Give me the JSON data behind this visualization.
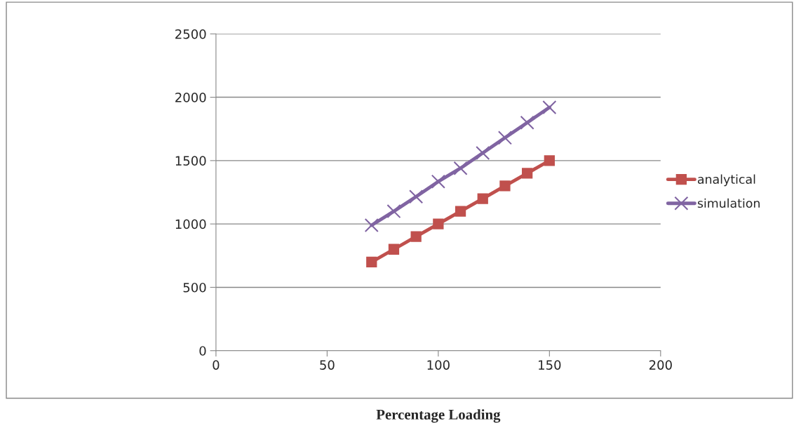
{
  "chart_data": {
    "type": "line",
    "xlabel": "Percentage Loading",
    "x": [
      70,
      80,
      90,
      100,
      110,
      120,
      130,
      140,
      150
    ],
    "series": [
      {
        "name": "analytical",
        "color": "#c0504d",
        "marker": "square",
        "values": [
          700,
          800,
          900,
          1000,
          1100,
          1200,
          1300,
          1400,
          1500
        ]
      },
      {
        "name": "simulation",
        "color": "#8064a2",
        "marker": "cross",
        "values": [
          990,
          1100,
          1215,
          1335,
          1440,
          1560,
          1680,
          1800,
          1920
        ]
      }
    ],
    "xlim": [
      0,
      200
    ],
    "xticks": [
      0,
      50,
      100,
      150,
      200
    ],
    "ylim": [
      0,
      2500
    ],
    "yticks": [
      0,
      500,
      1000,
      1500,
      2000,
      2500
    ],
    "grid": "y",
    "legend": "right",
    "line_style": "solid"
  }
}
